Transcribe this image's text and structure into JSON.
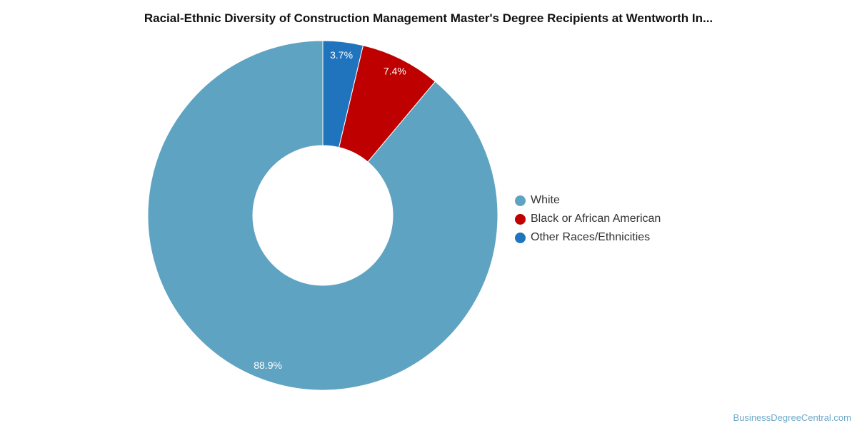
{
  "chart_data": {
    "type": "pie",
    "variant": "donut",
    "title": "Racial-Ethnic Diversity of Construction Management Master's Degree Recipients at Wentworth In...",
    "slices": [
      {
        "label": "White",
        "value": 88.9,
        "value_label": "88.9%",
        "color": "#5ea3c1"
      },
      {
        "label": "Black or African American",
        "value": 7.4,
        "value_label": "7.4%",
        "color": "#bf0000"
      },
      {
        "label": "Other Races/Ethnicities",
        "value": 3.7,
        "value_label": "3.7%",
        "color": "#1f74bd"
      }
    ],
    "direction": "counterclockwise",
    "start_angle": "12 o'clock",
    "legend_position": "right"
  },
  "footer": {
    "watermark": "BusinessDegreeCentral.com"
  }
}
